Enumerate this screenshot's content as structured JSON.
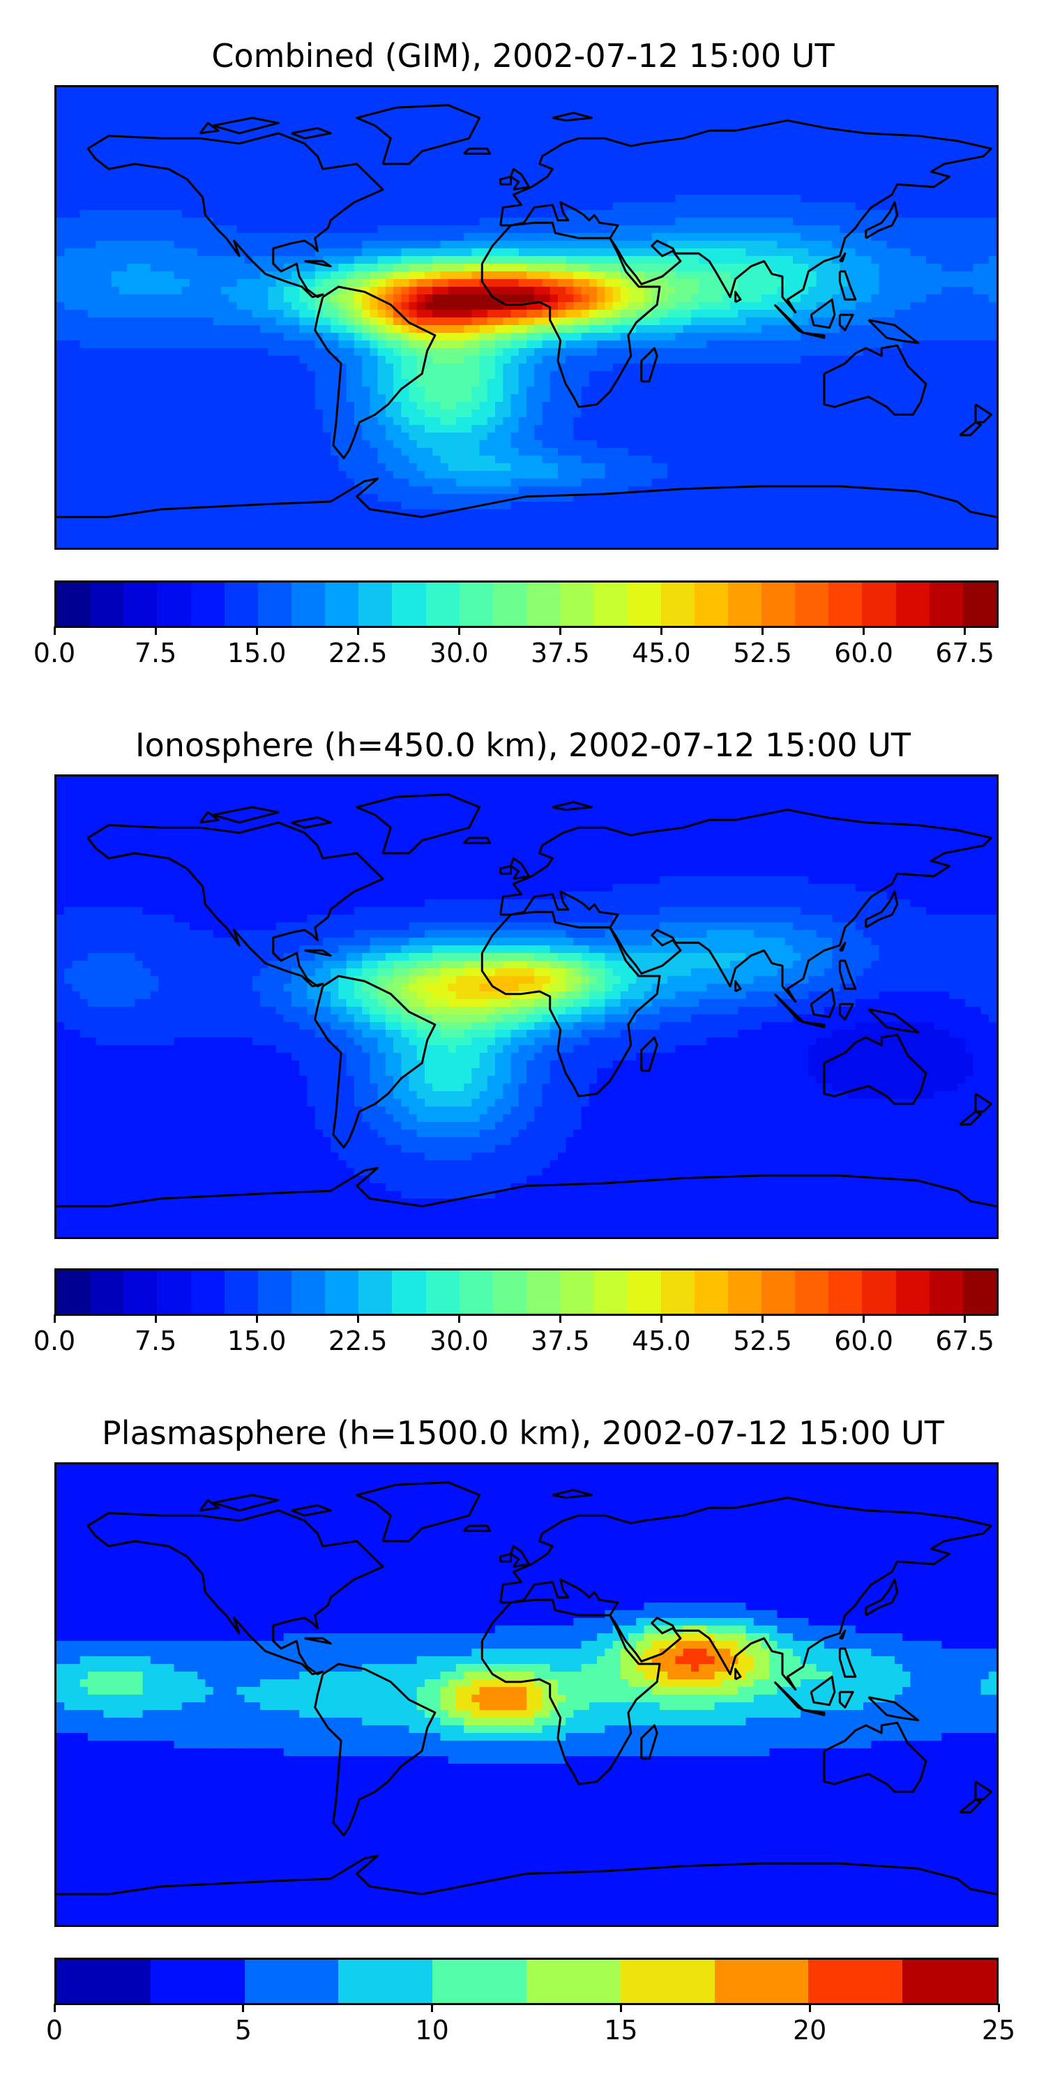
{
  "panels": [
    {
      "id": "combined",
      "title": "Combined (GIM), 2002-07-12 15:00 UT",
      "colorbar": {
        "min": 0,
        "max": 70,
        "levels": 28,
        "ticks": [
          "0.0",
          "7.5",
          "15.0",
          "22.5",
          "30.0",
          "37.5",
          "45.0",
          "52.5",
          "60.0",
          "67.5"
        ],
        "tick_values": [
          0,
          7.5,
          15,
          22.5,
          30,
          37.5,
          45,
          52.5,
          60,
          67.5
        ]
      },
      "field": {
        "background": 14,
        "blobs": [
          {
            "lon": -20,
            "lat": 8,
            "rx": 60,
            "ry": 14,
            "v": 44
          },
          {
            "lon": 10,
            "lat": 8,
            "rx": 30,
            "ry": 10,
            "v": 12
          },
          {
            "lon": -40,
            "lat": 0,
            "rx": 22,
            "ry": 10,
            "v": 10
          },
          {
            "lon": -30,
            "lat": -25,
            "rx": 30,
            "ry": 30,
            "v": 18
          },
          {
            "lon": 80,
            "lat": 15,
            "rx": 60,
            "ry": 20,
            "v": 14
          },
          {
            "lon": -150,
            "lat": 15,
            "rx": 40,
            "ry": 20,
            "v": 6
          },
          {
            "lon": 0,
            "lat": -60,
            "rx": 40,
            "ry": 8,
            "v": 6
          }
        ]
      }
    },
    {
      "id": "ionosphere",
      "title": "Ionosphere  (h=450.0 km), 2002-07-12 15:00 UT",
      "colorbar": {
        "min": 0,
        "max": 70,
        "levels": 28,
        "ticks": [
          "0.0",
          "7.5",
          "15.0",
          "22.5",
          "30.0",
          "37.5",
          "45.0",
          "52.5",
          "60.0",
          "67.5"
        ],
        "tick_values": [
          0,
          7.5,
          15,
          22.5,
          30,
          37.5,
          45,
          52.5,
          60,
          67.5
        ]
      },
      "field": {
        "background": 12,
        "blobs": [
          {
            "lon": -20,
            "lat": 8,
            "rx": 55,
            "ry": 16,
            "v": 30
          },
          {
            "lon": 5,
            "lat": 12,
            "rx": 22,
            "ry": 8,
            "v": 10
          },
          {
            "lon": -30,
            "lat": -25,
            "rx": 30,
            "ry": 28,
            "v": 14
          },
          {
            "lon": 80,
            "lat": 20,
            "rx": 50,
            "ry": 18,
            "v": 10
          },
          {
            "lon": -160,
            "lat": 10,
            "rx": 30,
            "ry": 20,
            "v": 4
          },
          {
            "lon": 140,
            "lat": -20,
            "rx": 40,
            "ry": 20,
            "v": -4
          }
        ]
      }
    },
    {
      "id": "plasmasphere",
      "title": "Plasmasphere (h=1500.0 km), 2002-07-12 15:00 UT",
      "colorbar": {
        "min": 0,
        "max": 25,
        "levels": 10,
        "ticks": [
          "0",
          "5",
          "10",
          "15",
          "20",
          "25"
        ],
        "tick_values": [
          0,
          5,
          10,
          15,
          20,
          25
        ]
      },
      "field": {
        "background": 3,
        "blobs": [
          {
            "lon": 0,
            "lat": 0,
            "rx": 200,
            "ry": 24,
            "v": 6
          },
          {
            "lon": 65,
            "lat": 15,
            "rx": 30,
            "ry": 14,
            "v": 14
          },
          {
            "lon": -10,
            "lat": -2,
            "rx": 22,
            "ry": 12,
            "v": 11
          },
          {
            "lon": -160,
            "lat": 5,
            "rx": 25,
            "ry": 12,
            "v": 5
          },
          {
            "lon": 125,
            "lat": 10,
            "rx": 25,
            "ry": 12,
            "v": 3
          }
        ]
      }
    }
  ],
  "colormap": [
    "#00007f",
    "#0000d4",
    "#0010ff",
    "#0058ff",
    "#00a4ff",
    "#1ff3e0",
    "#5cffa0",
    "#9cff5a",
    "#dfff18",
    "#ffc400",
    "#ff7f00",
    "#ff3d00",
    "#d40000",
    "#7f0000"
  ]
}
